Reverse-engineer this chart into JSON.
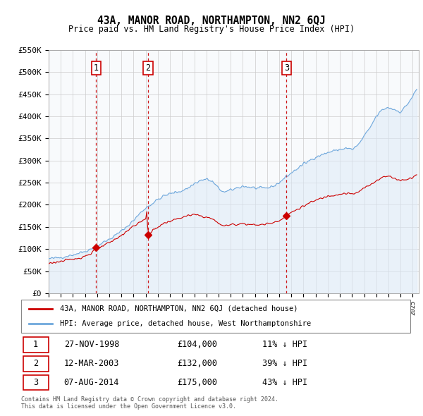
{
  "title": "43A, MANOR ROAD, NORTHAMPTON, NN2 6QJ",
  "subtitle": "Price paid vs. HM Land Registry's House Price Index (HPI)",
  "hpi_label": "HPI: Average price, detached house, West Northamptonshire",
  "property_label": "43A, MANOR ROAD, NORTHAMPTON, NN2 6QJ (detached house)",
  "footer_line1": "Contains HM Land Registry data © Crown copyright and database right 2024.",
  "footer_line2": "This data is licensed under the Open Government Licence v3.0.",
  "transactions": [
    {
      "num": 1,
      "date": "27-NOV-1998",
      "price": 104000,
      "pct": "11%",
      "dir": "↓",
      "year": 1998.917
    },
    {
      "num": 2,
      "date": "12-MAR-2003",
      "price": 132000,
      "pct": "39%",
      "dir": "↓",
      "year": 2003.192
    },
    {
      "num": 3,
      "date": "07-AUG-2014",
      "price": 175000,
      "pct": "43%",
      "dir": "↓",
      "year": 2014.6
    }
  ],
  "hpi_color": "#6fa8dc",
  "hpi_fill_color": "#dce9f8",
  "price_color": "#cc0000",
  "vline_color": "#cc0000",
  "background_color": "#ffffff",
  "plot_bg_color": "#ffffff",
  "grid_color": "#cccccc",
  "ylim": [
    0,
    550000
  ],
  "yticks": [
    0,
    50000,
    100000,
    150000,
    200000,
    250000,
    300000,
    350000,
    400000,
    450000,
    500000,
    550000
  ],
  "xmin": 1995.0,
  "xmax": 2025.5
}
